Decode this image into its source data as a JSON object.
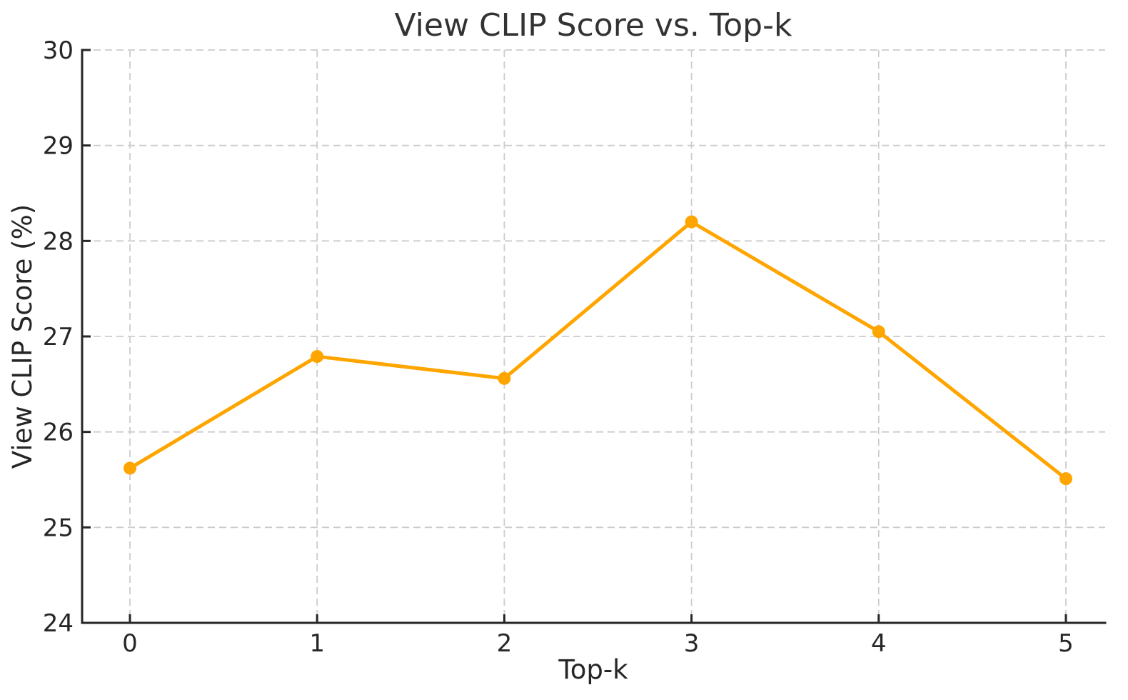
{
  "chart_data": {
    "type": "line",
    "title": "View CLIP Score vs. Top-k",
    "xlabel": "Top-k",
    "ylabel": "View CLIP Score (%)",
    "x": [
      0,
      1,
      2,
      3,
      4,
      5
    ],
    "series": [
      {
        "name": "View CLIP Score",
        "values": [
          25.62,
          26.79,
          26.56,
          28.2,
          27.05,
          25.51
        ]
      }
    ],
    "xticks": [
      0,
      1,
      2,
      3,
      4,
      5
    ],
    "xtick_labels": [
      "0",
      "1",
      "2",
      "3",
      "4",
      "5"
    ],
    "yticks": [
      24,
      25,
      26,
      27,
      28,
      29,
      30
    ],
    "ytick_labels": [
      "24",
      "25",
      "26",
      "27",
      "28",
      "29",
      "30"
    ],
    "xlim": [
      -0.26,
      5.21
    ],
    "ylim": [
      24,
      30
    ],
    "grid": "dashed",
    "legend": "none",
    "colors": {
      "line": "#FFA500",
      "marker": "#FFA500",
      "grid": "#cccccc",
      "axis": "#262626",
      "text": "#262626",
      "background": "#ffffff"
    }
  }
}
